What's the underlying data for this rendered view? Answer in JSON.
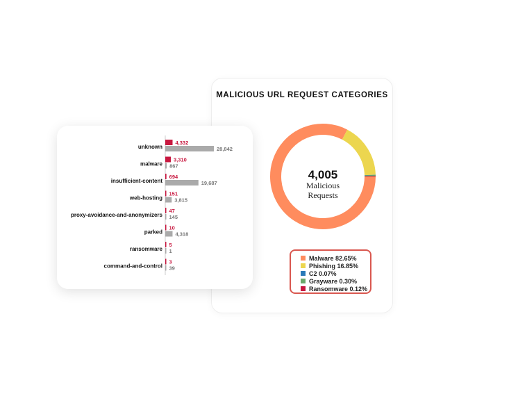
{
  "chart_data": [
    {
      "type": "bar",
      "orientation": "horizontal",
      "categories": [
        "unknown",
        "malware",
        "insufficient-content",
        "web-hosting",
        "proxy-avoidance-and-anonymizers",
        "parked",
        "ransomware",
        "command-and-control"
      ],
      "series": [
        {
          "values": [
            4332,
            3310,
            694,
            151,
            47,
            10,
            5,
            3
          ],
          "color": "#c8173f"
        },
        {
          "values": [
            28842,
            867,
            19687,
            3815,
            145,
            4318,
            1,
            39
          ],
          "color": "#aaaaaa"
        }
      ],
      "value_labels": [
        [
          "4,332",
          "3,310",
          "694",
          "151",
          "47",
          "10",
          "5",
          "3"
        ],
        [
          "28,842",
          "867",
          "19,687",
          "3,815",
          "145",
          "4,318",
          "1",
          "39"
        ]
      ]
    },
    {
      "type": "pie",
      "variant": "donut",
      "title": "MALICIOUS URL REQUEST CATEGORIES",
      "center_value": "4,005",
      "center_label_1": "Malicious",
      "center_label_2": "Requests",
      "slices": [
        {
          "label": "Malware 82.65%",
          "value": 82.65,
          "color": "#ff8c5e"
        },
        {
          "label": "Phishing 16.85%",
          "value": 16.85,
          "color": "#ecd64f"
        },
        {
          "label": "C2 0.07%",
          "value": 0.07,
          "color": "#2a7ab8"
        },
        {
          "label": "Grayware 0.30%",
          "value": 0.3,
          "color": "#6aa86a"
        },
        {
          "label": "Ransomware 0.12%",
          "value": 0.12,
          "color": "#c8173f"
        }
      ],
      "legend_placement": "bottom"
    }
  ]
}
